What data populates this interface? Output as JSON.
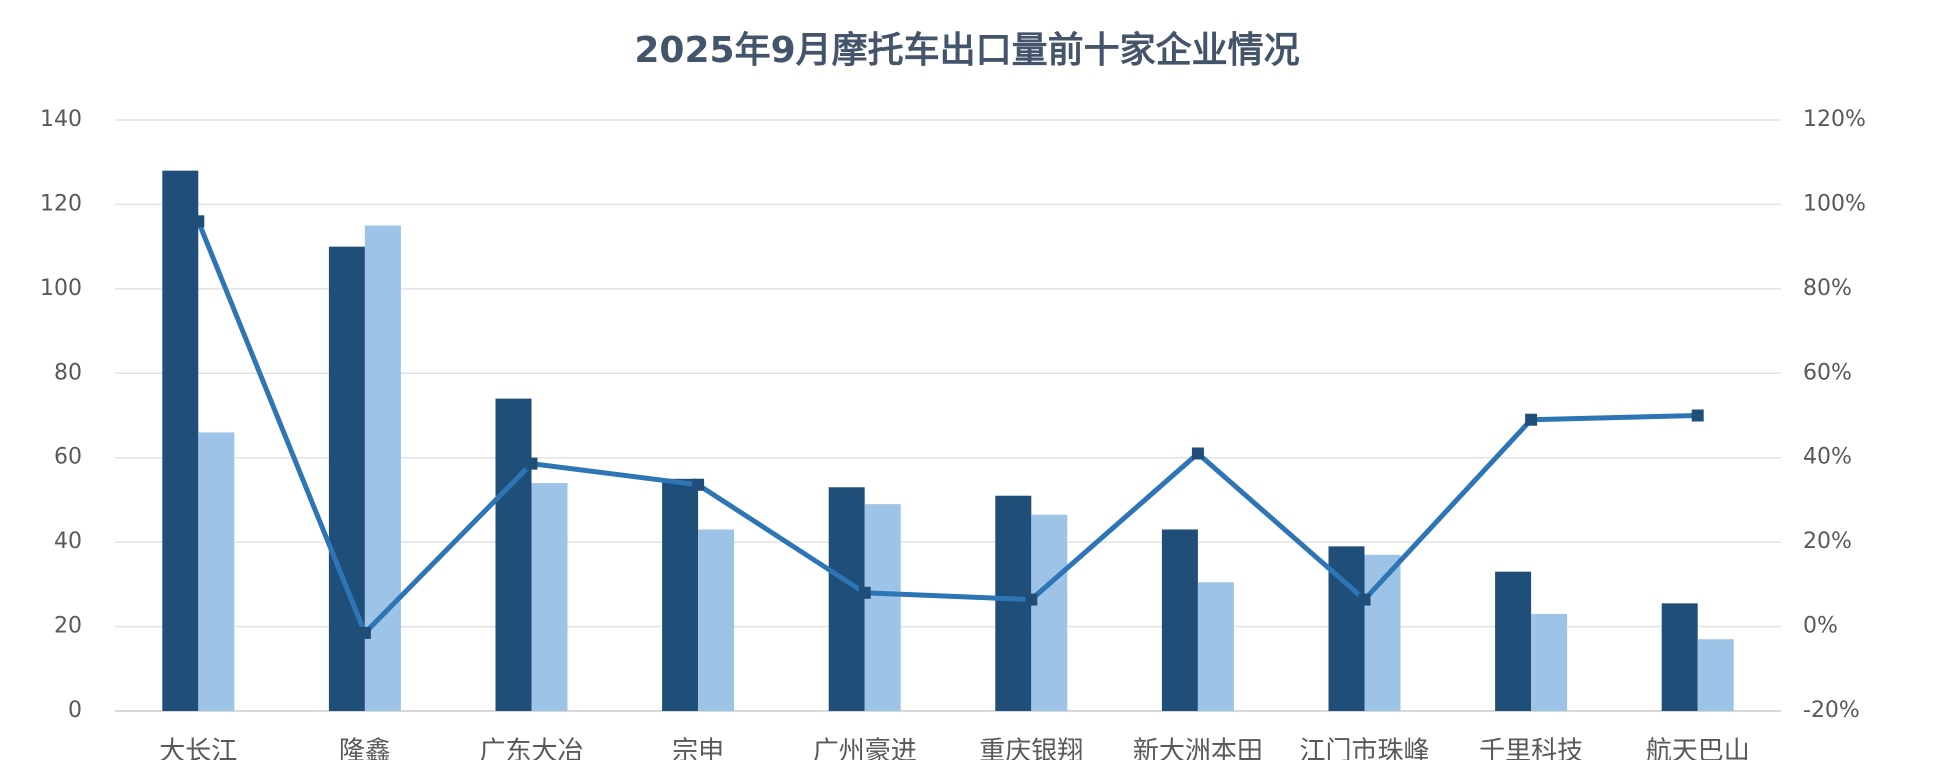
{
  "chart_data": {
    "type": "bar_line",
    "title": "2025年9月摩托车出口量前十家企业情况",
    "categories": [
      "大长江",
      "隆鑫",
      "广东大冶",
      "宗申",
      "广州豪进",
      "重庆银翔",
      "新大洲本田",
      "江门市珠峰",
      "千里科技",
      "航天巴山"
    ],
    "series": [
      {
        "type": "bar",
        "color": "#1f4e79",
        "values": [
          128,
          110,
          74,
          55,
          53,
          51,
          43,
          39,
          33,
          25.5
        ]
      },
      {
        "type": "bar",
        "color": "#9dc3e6",
        "values": [
          66,
          115,
          54,
          43,
          49,
          46.5,
          30.5,
          37,
          23,
          17
        ]
      },
      {
        "type": "line",
        "axis": "y2",
        "color": "#2e75b6",
        "values": [
          96,
          -1.5,
          38.6,
          33.6,
          8,
          6.4,
          41,
          6.4,
          49,
          50
        ]
      }
    ],
    "ylim": [
      0,
      140
    ],
    "yticks": [
      0,
      20,
      40,
      60,
      80,
      100,
      120,
      140
    ],
    "y2lim": [
      -20,
      120
    ],
    "y2ticks": [
      {
        "value": -20,
        "label": "-20%"
      },
      {
        "value": 0,
        "label": "0%"
      },
      {
        "value": 20,
        "label": "20%"
      },
      {
        "value": 40,
        "label": "40%"
      },
      {
        "value": 60,
        "label": "60%"
      },
      {
        "value": 80,
        "label": "80%"
      },
      {
        "value": 100,
        "label": "100%"
      },
      {
        "value": 120,
        "label": "120%"
      }
    ],
    "grid": true
  }
}
